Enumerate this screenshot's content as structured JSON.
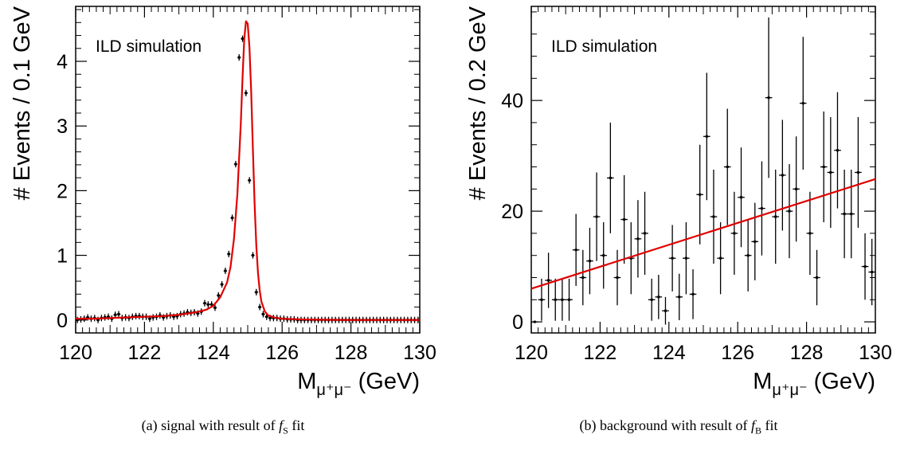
{
  "chart_data": [
    {
      "type": "scatter",
      "annotation": "ILD simulation",
      "ylabel": "# Events / 0.1 GeV",
      "xlabel_main": "M",
      "xlabel_sub": "μ⁺μ⁻",
      "xlabel_unit": "(GeV)",
      "xlim": [
        120,
        130
      ],
      "ylim": [
        -0.2,
        4.85
      ],
      "xticks": [
        120,
        122,
        124,
        126,
        128,
        130
      ],
      "yticks": [
        0,
        1,
        2,
        3,
        4
      ],
      "fit_color": "#e00000",
      "series": [
        {
          "x": [
            120.05,
            120.15,
            120.25,
            120.35,
            120.45,
            120.55,
            120.65,
            120.75,
            120.85,
            120.95,
            121.05,
            121.15,
            121.25,
            121.35,
            121.45,
            121.55,
            121.65,
            121.75,
            121.85,
            121.95,
            122.05,
            122.15,
            122.25,
            122.35,
            122.45,
            122.55,
            122.65,
            122.75,
            122.85,
            122.95,
            123.05,
            123.15,
            123.25,
            123.35,
            123.45,
            123.55,
            123.65,
            123.75,
            123.85,
            123.95,
            124.05,
            124.15,
            124.25,
            124.35,
            124.45,
            124.55,
            124.65,
            124.75,
            124.85,
            124.95,
            125.05,
            125.15,
            125.25,
            125.35,
            125.45,
            125.55,
            125.65,
            125.75,
            125.85,
            125.95,
            126.05,
            126.15,
            126.25,
            126.35,
            126.45,
            126.55,
            126.65,
            126.75,
            126.85,
            126.95,
            127.05,
            127.15,
            127.25,
            127.35,
            127.45,
            127.55,
            127.65,
            127.75,
            127.85,
            127.95,
            128.05,
            128.15,
            128.25,
            128.35,
            128.45,
            128.55,
            128.65,
            128.75,
            128.85,
            128.95,
            129.05,
            129.15,
            129.25,
            129.35,
            129.45,
            129.55,
            129.65,
            129.75,
            129.85,
            129.95
          ],
          "y": [
            0.0,
            0.01,
            0.02,
            0.04,
            0.02,
            0.03,
            0.0,
            0.03,
            0.04,
            0.05,
            0.02,
            0.08,
            0.09,
            0.03,
            0.04,
            0.03,
            0.05,
            0.06,
            0.06,
            0.05,
            0.05,
            0.02,
            0.04,
            0.05,
            0.07,
            0.04,
            0.06,
            0.07,
            0.05,
            0.06,
            0.09,
            0.1,
            0.12,
            0.11,
            0.12,
            0.1,
            0.13,
            0.26,
            0.24,
            0.24,
            0.19,
            0.38,
            0.55,
            0.76,
            1.02,
            1.58,
            2.41,
            4.06,
            4.35,
            3.51,
            2.16,
            1.0,
            0.43,
            0.2,
            0.09,
            0.05,
            0.03,
            0.03,
            0.03,
            0.02,
            0.02,
            0.01,
            0.01,
            0.01,
            0.0,
            0.0,
            0.0,
            0.0,
            0.0,
            0.0,
            0.0,
            0.0,
            0.0,
            0.0,
            0.0,
            0.0,
            0.0,
            0.0,
            0.0,
            0.0,
            0.0,
            0.0,
            0.0,
            0.0,
            0.0,
            0.0,
            0.0,
            0.0,
            0.0,
            0.0,
            0.0,
            0.0,
            0.0,
            0.0,
            0.0,
            0.0,
            0.0,
            0.0,
            0.0,
            0.0
          ],
          "yerr": 0.05
        }
      ],
      "fit": {
        "x": [
          120.0,
          120.5,
          121.0,
          121.5,
          122.0,
          122.5,
          123.0,
          123.5,
          123.8,
          124.0,
          124.2,
          124.4,
          124.5,
          124.6,
          124.7,
          124.8,
          124.85,
          124.9,
          124.95,
          125.0,
          125.05,
          125.1,
          125.15,
          125.2,
          125.25,
          125.3,
          125.35,
          125.4,
          125.5,
          125.6,
          125.8,
          126.0,
          126.5,
          127.0,
          128.0,
          129.0,
          130.0
        ],
        "y": [
          0.02,
          0.02,
          0.03,
          0.04,
          0.05,
          0.06,
          0.08,
          0.12,
          0.16,
          0.22,
          0.35,
          0.58,
          0.82,
          1.25,
          1.95,
          3.05,
          3.75,
          4.35,
          4.62,
          4.58,
          4.22,
          3.55,
          2.65,
          1.8,
          1.15,
          0.72,
          0.45,
          0.28,
          0.13,
          0.07,
          0.035,
          0.02,
          0.01,
          0.005,
          0.0,
          0.0,
          0.0
        ]
      }
    },
    {
      "type": "scatter",
      "annotation": "ILD simulation",
      "ylabel": "# Events / 0.2 GeV",
      "xlabel_main": "M",
      "xlabel_sub": "μ⁺μ⁻",
      "xlabel_unit": "(GeV)",
      "xlim": [
        120,
        130
      ],
      "ylim": [
        -2,
        57
      ],
      "xticks": [
        120,
        122,
        124,
        126,
        128,
        130
      ],
      "yticks": [
        0,
        20,
        40
      ],
      "fit_color": "#e00000",
      "series": [
        {
          "x": [
            120.1,
            120.3,
            120.5,
            120.7,
            120.9,
            121.1,
            121.3,
            121.5,
            121.7,
            121.9,
            122.1,
            122.3,
            122.5,
            122.7,
            122.9,
            123.1,
            123.3,
            123.5,
            123.7,
            123.9,
            124.1,
            124.3,
            124.5,
            124.7,
            124.9,
            125.1,
            125.3,
            125.5,
            125.7,
            125.9,
            126.1,
            126.3,
            126.5,
            126.7,
            126.9,
            127.1,
            127.3,
            127.5,
            127.7,
            127.9,
            128.1,
            128.3,
            128.5,
            128.7,
            128.9,
            129.1,
            129.3,
            129.5,
            129.7,
            129.9
          ],
          "y": [
            0,
            4,
            7.5,
            4,
            4,
            4,
            13,
            8,
            11,
            19,
            12,
            26,
            8,
            18.5,
            11.5,
            15,
            16,
            4,
            4.5,
            2,
            11.5,
            4.5,
            11.5,
            5,
            23,
            33.5,
            19,
            11.5,
            28,
            16,
            22.5,
            12,
            14.5,
            20.5,
            40.5,
            19,
            26.5,
            20,
            24,
            39.5,
            16,
            8,
            28,
            27,
            31,
            19.5,
            19.5,
            27,
            10,
            9
          ],
          "yerr": [
            0,
            3.8,
            5,
            3.8,
            3.8,
            3.8,
            6.5,
            5,
            6,
            8,
            6,
            10,
            5,
            8,
            6.5,
            7,
            7.5,
            3.8,
            4,
            2.5,
            6,
            4.2,
            6.5,
            4.5,
            9,
            11.5,
            8.5,
            6.5,
            10.5,
            7.5,
            9,
            6.5,
            7,
            8.5,
            14.5,
            8.5,
            10,
            8.5,
            9.5,
            12,
            7.5,
            5,
            10,
            10,
            10.5,
            8,
            8,
            10,
            6,
            6
          ]
        }
      ],
      "fit": {
        "x": [
          120,
          130
        ],
        "y": [
          6,
          25.8
        ]
      }
    }
  ],
  "captions": {
    "a_prefix": "(a)  signal with result of ",
    "a_f": "f",
    "a_sub": "S",
    "a_suffix": " fit",
    "b_prefix": "(b)  background with result of ",
    "b_f": "f",
    "b_sub": "B",
    "b_suffix": " fit"
  }
}
